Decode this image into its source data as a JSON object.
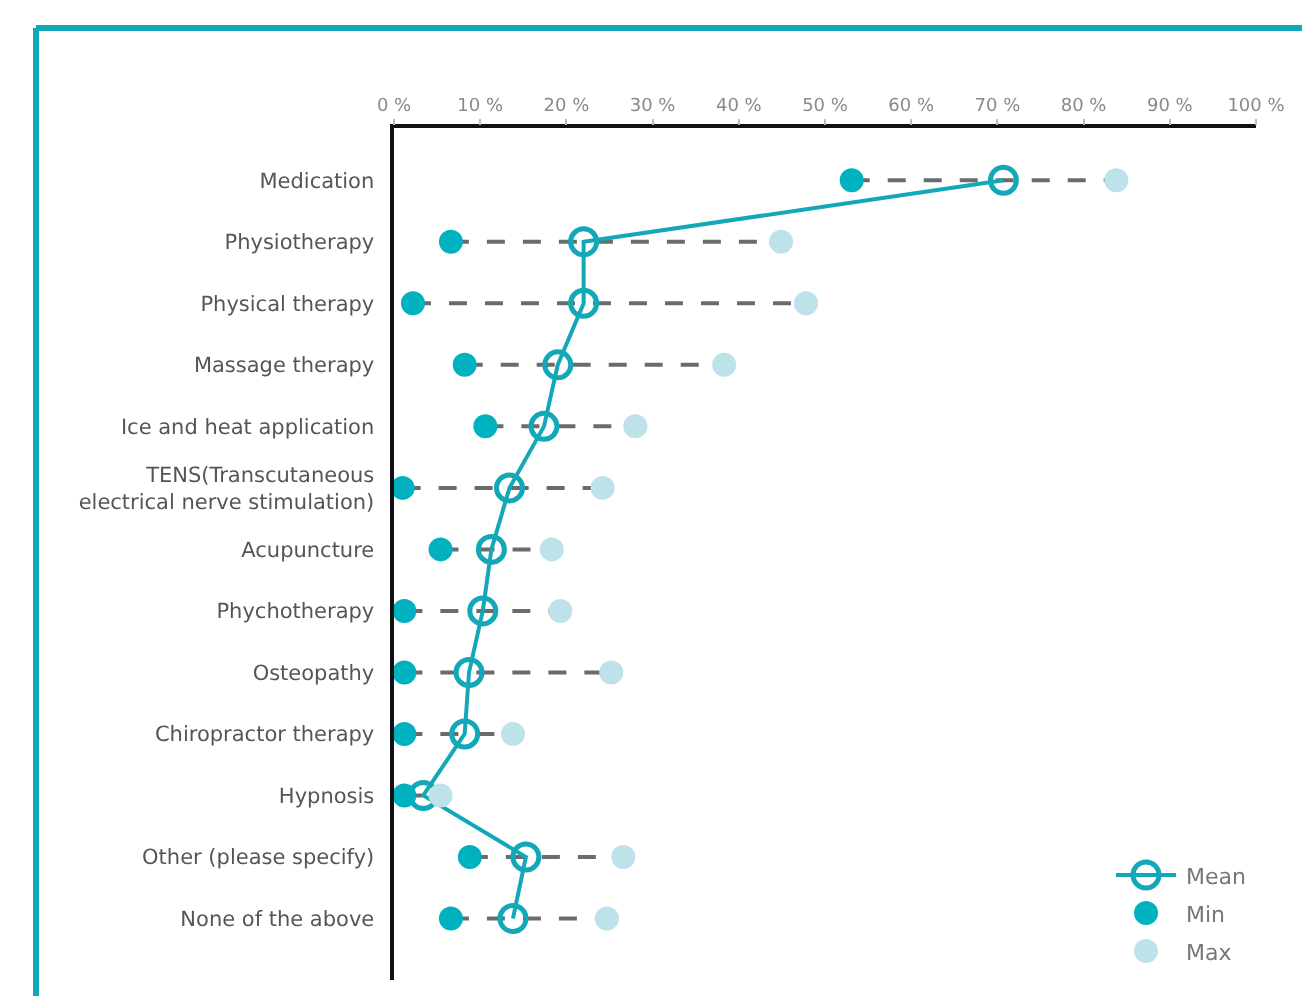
{
  "chart_data": {
    "type": "scatter",
    "orientation": "horizontal",
    "categories": [
      "Medication",
      "Physiotherapy",
      "Physical therapy",
      "Massage therapy",
      "Ice and heat application",
      "TENS(Transcutaneous\nelectrical nerve stimulation)",
      "Acupuncture",
      "Phychotherapy",
      "Osteopathy",
      "Chiropractor therapy",
      "Hypnosis",
      "Other (please specify)",
      "None of the above"
    ],
    "series": [
      {
        "name": "Mean",
        "type": "line",
        "marker": "circle",
        "color": "#13a8b8",
        "values": [
          70.7,
          22,
          22,
          19,
          17.4,
          13.4,
          11.3,
          10.3,
          8.7,
          8.2,
          3.4,
          15.3,
          13.8
        ]
      },
      {
        "name": "Min",
        "type": "scatter",
        "marker": "circle",
        "color": "#00b2c0",
        "values": [
          53.1,
          6.6,
          2.2,
          8.2,
          10.6,
          1,
          5.4,
          1.2,
          1.2,
          1.2,
          1.2,
          8.8,
          6.6
        ]
      },
      {
        "name": "Max",
        "type": "scatter",
        "marker": "circle",
        "color": "#bde2e9",
        "values": [
          83.8,
          44.9,
          47.8,
          38.3,
          28,
          24.2,
          18.3,
          19.3,
          25.2,
          13.8,
          5.4,
          26.6,
          24.7
        ]
      }
    ],
    "xlim": [
      0,
      100
    ],
    "xticks": [
      {
        "value": 0,
        "label": "0 %"
      },
      {
        "value": 10,
        "label": "10 %"
      },
      {
        "value": 20,
        "label": "20 %"
      },
      {
        "value": 30,
        "label": "30 %"
      },
      {
        "value": 40,
        "label": "40 %"
      },
      {
        "value": 50,
        "label": "50 %"
      },
      {
        "value": 60,
        "label": "60 %"
      },
      {
        "value": 70,
        "label": "70 %"
      },
      {
        "value": 80,
        "label": "80 %"
      },
      {
        "value": 90,
        "label": "90 %"
      },
      {
        "value": 100,
        "label": "100 %"
      }
    ],
    "grid": false,
    "legend": "bottom right"
  }
}
